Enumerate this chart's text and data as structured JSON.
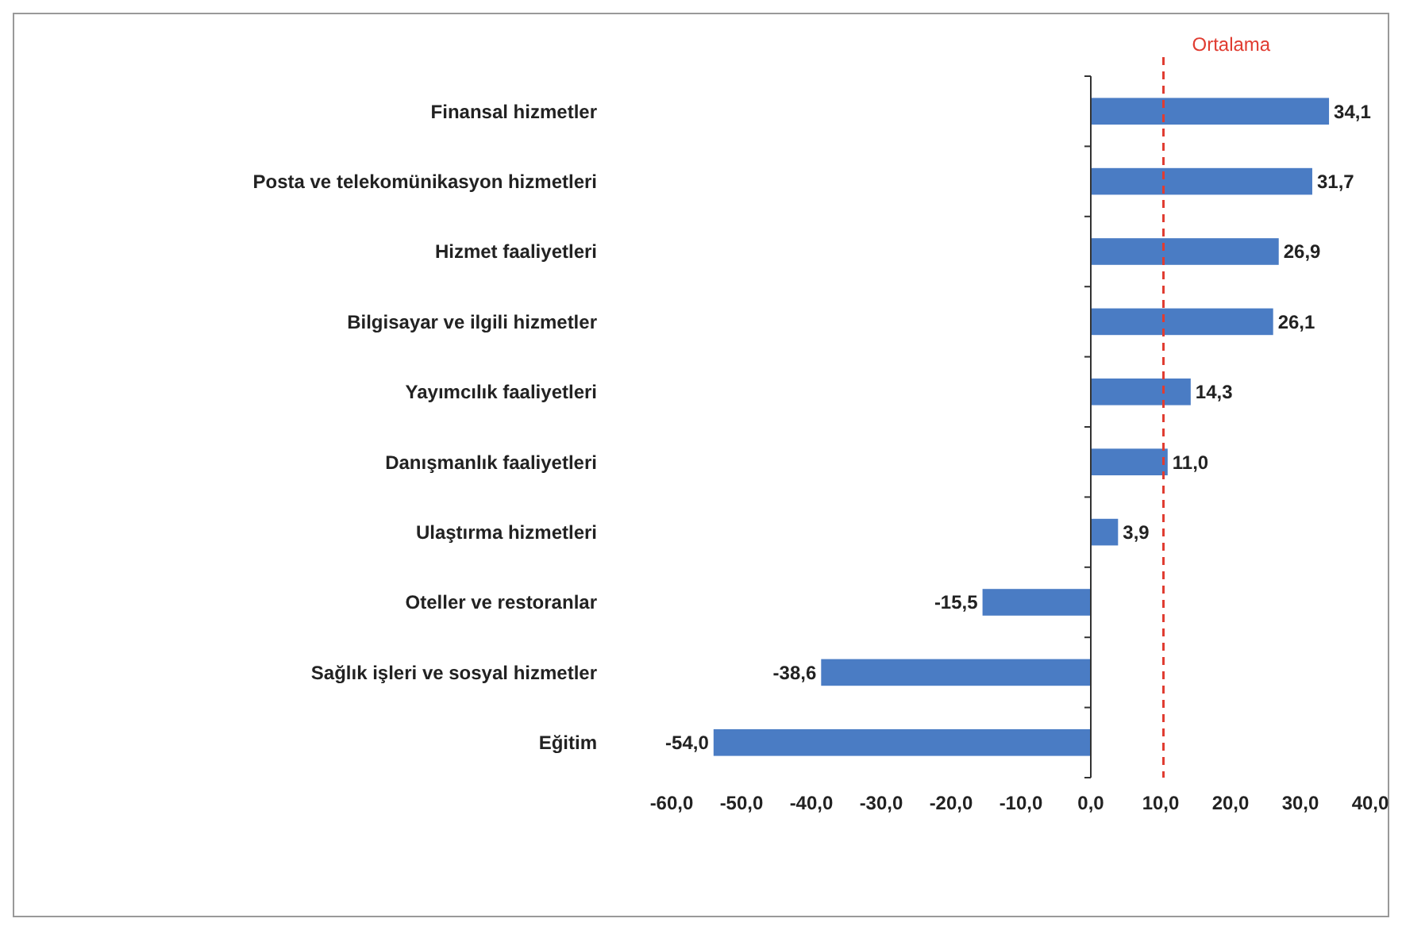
{
  "chart_data": {
    "type": "bar",
    "orientation": "horizontal",
    "categories": [
      "Finansal hizmetler",
      "Posta ve telekomünikasyon hizmetleri",
      "Hizmet faaliyetleri",
      "Bilgisayar ve ilgili hizmetler",
      "Yayımcılık faaliyetleri",
      "Danışmanlık faaliyetleri",
      "Ulaştırma hizmetleri",
      "Oteller ve restoranlar",
      "Sağlık işleri ve sosyal hizmetler",
      "Eğitim"
    ],
    "values": [
      34.1,
      31.7,
      26.9,
      26.1,
      14.3,
      11.0,
      3.9,
      -15.5,
      -38.6,
      -54.0
    ],
    "value_labels": [
      "34,1",
      "31,7",
      "26,9",
      "26,1",
      "14,3",
      "11,0",
      "3,9",
      "-15,5",
      "-38,6",
      "-54,0"
    ],
    "color": "#4a7cc4",
    "xlim": [
      -60,
      40
    ],
    "xticks": [
      {
        "value": -60,
        "label": "-60,0"
      },
      {
        "value": -50,
        "label": "-50,0"
      },
      {
        "value": -40,
        "label": "-40,0"
      },
      {
        "value": -30,
        "label": "-30,0"
      },
      {
        "value": -20,
        "label": "-20,0"
      },
      {
        "value": -10,
        "label": "-10,0"
      },
      {
        "value": 0,
        "label": "0,0"
      },
      {
        "value": 10,
        "label": "10,0"
      },
      {
        "value": 20,
        "label": "20,0"
      },
      {
        "value": 30,
        "label": "30,0"
      },
      {
        "value": 40,
        "label": "40,0"
      }
    ],
    "ref_lines": [
      {
        "axis": "x",
        "value": 10.4,
        "label": "Ortalama",
        "color": "#e03c31",
        "line_style": "dashed"
      }
    ],
    "grid": false
  }
}
